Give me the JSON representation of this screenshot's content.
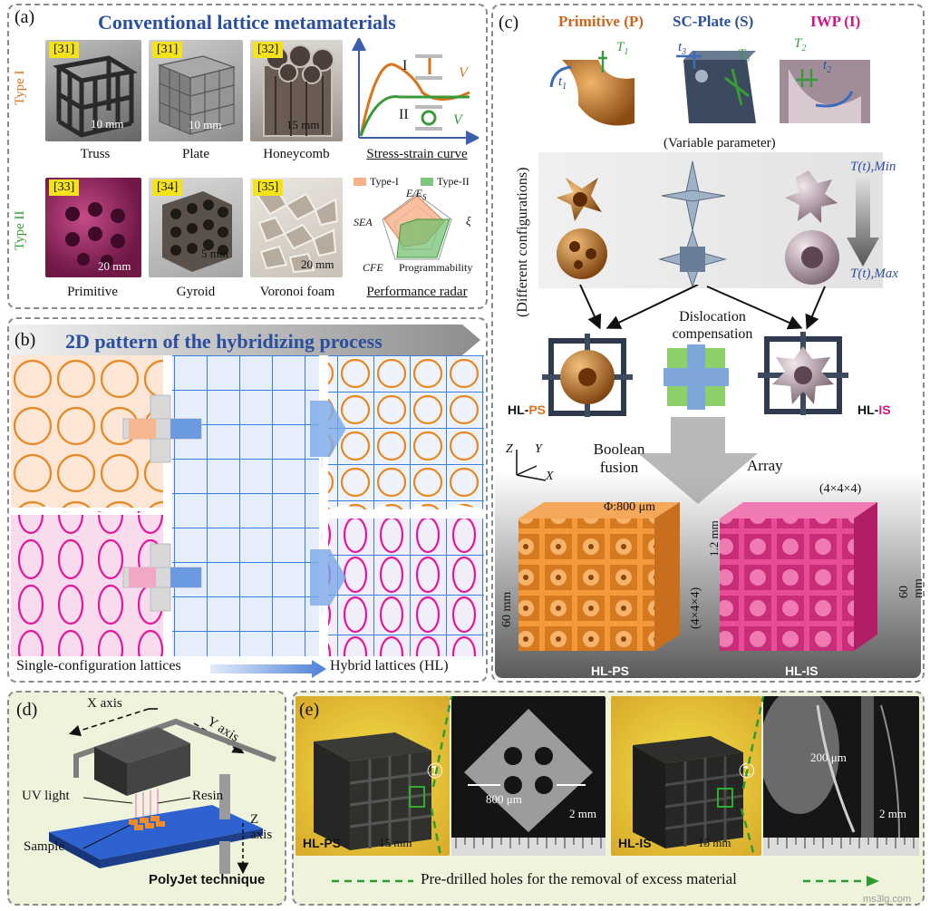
{
  "panel_a": {
    "label": "(a)",
    "title": "Conventional lattice metamaterials",
    "type1": "Type I",
    "type2": "Type II",
    "row1": [
      {
        "ref": "[31]",
        "caption": "Truss",
        "scale": "10 mm"
      },
      {
        "ref": "[31]",
        "caption": "Plate",
        "scale": "10 mm"
      },
      {
        "ref": "[32]",
        "caption": "Honeycomb",
        "scale": "15 mm"
      }
    ],
    "row2": [
      {
        "ref": "[33]",
        "caption": "Primitive",
        "scale": "20 mm"
      },
      {
        "ref": "[34]",
        "caption": "Gyroid",
        "scale": "5 mm"
      },
      {
        "ref": "[35]",
        "caption": "Voronoi foam",
        "scale": "20 mm"
      }
    ],
    "stress_caption": "Stress-strain curve",
    "stress_I": "I",
    "stress_II": "II",
    "stress_V": "V",
    "radar_caption": "Performance radar",
    "radar_legend1": "Type-I",
    "radar_legend2": "Type-II",
    "radar_axis1": "E/E",
    "radar_axis1_sub": "S",
    "radar_axis2": "ξ",
    "radar_axis3": "Programmability",
    "radar_axis4": "CFE",
    "radar_axis5": "SEA"
  },
  "panel_b": {
    "label": "(b)",
    "title": "2D pattern of the hybridizing process",
    "left_caption": "Single-configuration lattices",
    "right_caption": "Hybrid lattices (HL)"
  },
  "panel_c": {
    "label": "(c)",
    "head1": "Primitive (P)",
    "head2": "SC-Plate (S)",
    "head3": "IWP (I)",
    "var_param": "(Variable parameter)",
    "diff_config": "(Different configurations)",
    "t1": "t",
    "t1_sub": "1",
    "T1": "T",
    "T1_sub": "1",
    "t3": "t",
    "t3_sub": "3",
    "T3": "T",
    "T3_sub": "3",
    "T2": "T",
    "T2_sub": "2",
    "t2": "t",
    "t2_sub": "2",
    "tmin": "T(t),Min",
    "tmax": "T(t),Max",
    "dislocation": "Dislocation compensation",
    "hlps_left": "HL-",
    "hlps_ps": "PS",
    "hlis_left": "HL-",
    "hlis_is": "IS",
    "boolean": "Boolean fusion",
    "array": "Array",
    "axis_z": "Z",
    "axis_y": "Y",
    "axis_x": "X",
    "phi": "Φ:800 μm",
    "size_444_top": "(4×4×4)",
    "size_444_side": "(4×4×4)",
    "mm60_left": "60 mm",
    "mm60_right": "60 mm",
    "mm12": "1.2 mm",
    "cube_ps_label": "HL-PS",
    "cube_is_label": "HL-IS"
  },
  "panel_d": {
    "label": "(d)",
    "x_axis": "X axis",
    "y_axis": "Y axis",
    "z_axis": "Z axis",
    "uv": "UV light",
    "resin": "Resin",
    "sample": "Sample",
    "technique": "PolyJet technique"
  },
  "panel_e": {
    "label": "(e)",
    "photo1_label": "HL-PS",
    "photo1_scale": "15 mm",
    "photo2_dim": "800 μm",
    "photo2_scale": "2 mm",
    "photo3_label": "HL-IS",
    "photo3_scale": "15 mm",
    "photo4_dim": "200 μm",
    "photo4_scale": "2 mm",
    "marker": "①",
    "footer": "Pre-drilled holes for the removal of excess material",
    "watermark": "ms3lg.com"
  },
  "colors": {
    "orange": "#e8871e",
    "magenta": "#e4169a",
    "blue": "#3a7ee0",
    "title_blue": "#2a4f9e",
    "typeI": "#d8731b",
    "typeII": "#3a9a3a"
  }
}
